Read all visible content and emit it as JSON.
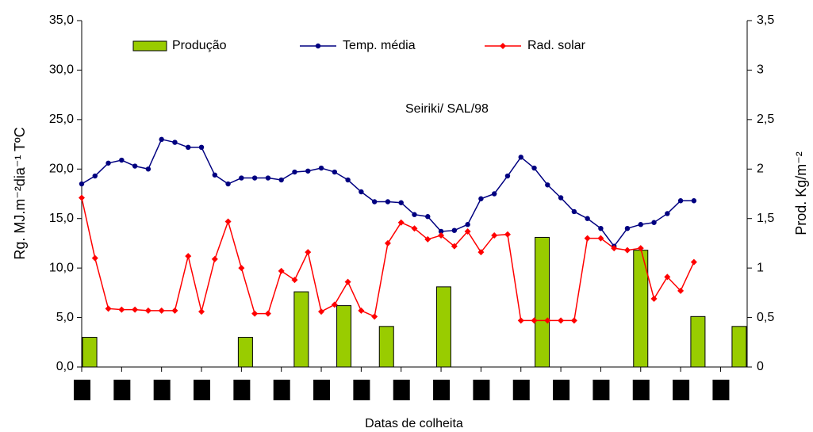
{
  "chart_data": {
    "type": "combo",
    "annotation": "Seiriki/ SAL/98",
    "x_label": "Datas de colheita",
    "y_label": "Rg. MJ.m⁻²dia⁻¹ TºC",
    "y2_label": "Prod. Kg/m⁻²",
    "xlim": [
      0,
      50
    ],
    "xticks": [
      0,
      3,
      6,
      9,
      12,
      15,
      18,
      21,
      24,
      27,
      30,
      33,
      36,
      39,
      42,
      45,
      48
    ],
    "ylim": [
      0,
      35
    ],
    "yticks": [
      {
        "value": 35,
        "label": "35,0"
      },
      {
        "value": 30,
        "label": "30,0"
      },
      {
        "value": 25,
        "label": "25,0"
      },
      {
        "value": 20,
        "label": "20,0"
      },
      {
        "value": 15,
        "label": "15,0"
      },
      {
        "value": 10,
        "label": "10,0"
      },
      {
        "value": 5,
        "label": "5,0"
      },
      {
        "value": 0,
        "label": "0,0"
      }
    ],
    "y2lim": [
      0,
      3.5
    ],
    "y2ticks": [
      {
        "value": 3.5,
        "label": "3,5"
      },
      3,
      {
        "value": 2.5,
        "label": "2,5"
      },
      2,
      {
        "value": 1.5,
        "label": "1,5"
      },
      1,
      {
        "value": 0.5,
        "label": "0,5"
      },
      0
    ],
    "series": [
      {
        "name": "Produção",
        "type": "bar",
        "axis": "y2",
        "color": "#99cc00",
        "x": [
          0.6,
          12.3,
          16.5,
          19.7,
          22.9,
          27.2,
          34.6,
          42.0,
          46.3,
          49.4
        ],
        "values": [
          0.3,
          0.3,
          0.76,
          0.62,
          0.41,
          0.81,
          1.31,
          1.18,
          0.51,
          0.41
        ]
      },
      {
        "name": "Temp. média",
        "type": "line",
        "color": "#000080",
        "marker": "circle",
        "x": [
          0,
          1,
          2,
          3,
          4,
          5,
          6,
          7,
          8,
          9,
          10,
          11,
          12,
          13,
          14,
          15,
          16,
          17,
          18,
          19,
          20,
          21,
          22,
          23,
          24,
          25,
          26,
          27,
          28,
          29,
          30,
          31,
          32,
          33,
          34,
          35,
          36,
          37,
          38,
          39,
          40,
          41,
          42,
          43,
          44,
          45,
          46
        ],
        "values": [
          18.5,
          19.3,
          20.6,
          20.9,
          20.3,
          20.0,
          23.0,
          22.7,
          22.2,
          22.2,
          19.4,
          18.5,
          19.1,
          19.1,
          19.1,
          18.9,
          19.7,
          19.8,
          20.1,
          19.7,
          18.9,
          17.7,
          16.7,
          16.7,
          16.6,
          15.4,
          15.2,
          13.7,
          13.8,
          14.4,
          17.0,
          17.5,
          19.3,
          21.2,
          20.1,
          18.4,
          17.1,
          15.7,
          15.0,
          14.0,
          12.2,
          14.0,
          14.4,
          14.6,
          15.5,
          16.8,
          16.8
        ]
      },
      {
        "name": "Rad. solar",
        "type": "line",
        "color": "#ff0000",
        "marker": "diamond",
        "x": [
          0,
          1,
          2,
          3,
          4,
          5,
          6,
          7,
          8,
          9,
          10,
          11,
          12,
          13,
          14,
          15,
          16,
          17,
          18,
          19,
          20,
          21,
          22,
          23,
          24,
          25,
          26,
          27,
          28,
          29,
          30,
          31,
          32,
          33,
          34,
          35,
          36,
          37,
          38,
          39,
          40,
          41,
          42,
          43,
          44,
          45,
          46
        ],
        "values": [
          17.1,
          11.0,
          5.9,
          5.8,
          5.8,
          5.7,
          5.7,
          5.7,
          11.2,
          5.6,
          10.9,
          14.7,
          10.0,
          5.4,
          5.4,
          9.7,
          8.8,
          11.6,
          5.6,
          6.3,
          8.6,
          5.7,
          5.1,
          12.5,
          14.6,
          14.0,
          12.9,
          13.3,
          12.2,
          13.7,
          11.6,
          13.3,
          13.4,
          4.7,
          4.7,
          4.7,
          4.7,
          4.7,
          13.0,
          13.0,
          12.0,
          11.8,
          12.0,
          6.9,
          9.1,
          7.7,
          10.6
        ]
      }
    ]
  }
}
